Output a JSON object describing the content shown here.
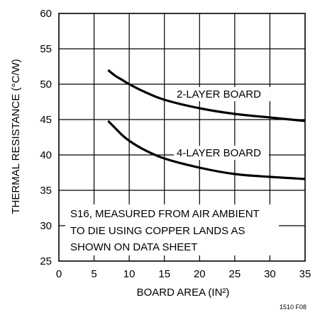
{
  "chart_data": {
    "type": "line",
    "xlabel": "BOARD AREA (IN²)",
    "ylabel": "THERMAL RESISTANCE (°C/W)",
    "xlim": [
      0,
      35
    ],
    "ylim": [
      25,
      60
    ],
    "x_ticks": [
      0,
      5,
      10,
      15,
      20,
      25,
      30,
      35
    ],
    "y_ticks": [
      25,
      30,
      35,
      40,
      45,
      50,
      55,
      60
    ],
    "grid": true,
    "series": [
      {
        "name": "2-LAYER BOARD",
        "x": [
          7,
          8,
          9,
          10,
          12,
          15,
          20,
          25,
          30,
          35
        ],
        "y": [
          52.0,
          51.2,
          50.6,
          50.0,
          49.0,
          47.8,
          46.6,
          45.8,
          45.3,
          44.8
        ]
      },
      {
        "name": "4-LAYER BOARD",
        "x": [
          7,
          8,
          9,
          10,
          12,
          15,
          20,
          25,
          30,
          35
        ],
        "y": [
          44.8,
          43.8,
          42.8,
          42.0,
          40.8,
          39.5,
          38.2,
          37.3,
          36.9,
          36.6
        ]
      }
    ],
    "annotation": {
      "lines": [
        "S16, MEASURED FROM AIR AMBIENT",
        "TO DIE USING COPPER LANDS AS",
        "SHOWN ON DATA SHEET"
      ]
    },
    "figure_id": "1510 F08"
  }
}
